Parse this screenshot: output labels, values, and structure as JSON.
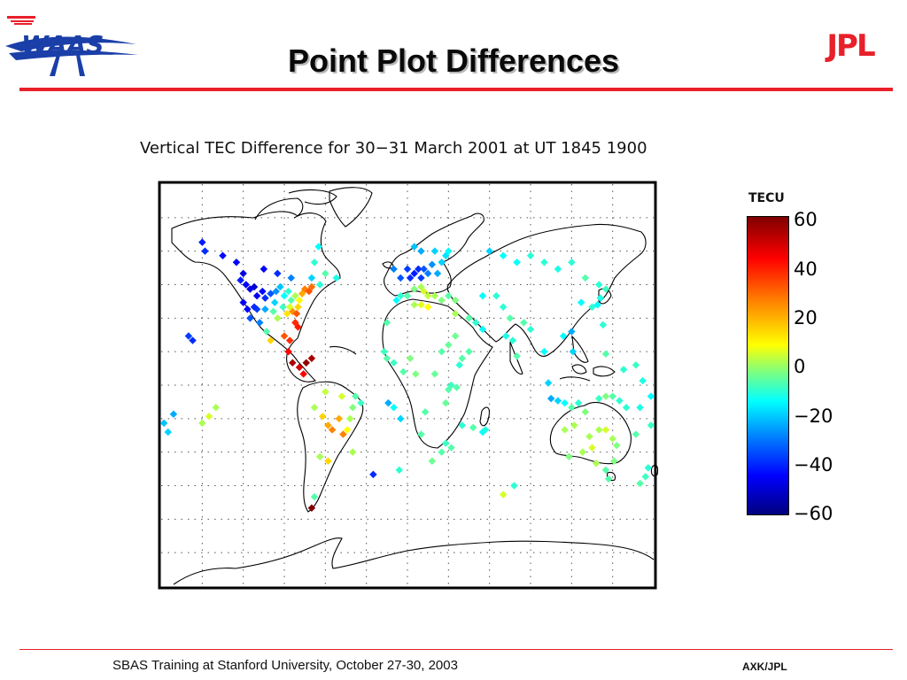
{
  "slide": {
    "title": "Point Plot Differences",
    "footer_left": "SBAS Training at Stanford University, October 27-30, 2003",
    "footer_right": "AXK/JPL",
    "logos": {
      "left": "WAAS",
      "right": "JPL"
    }
  },
  "figure": {
    "title": "Vertical TEC Difference for 30−31 March 2001 at UT  1845 1900",
    "colorbar_label": "TECU",
    "colorbar_ticks": [
      "60",
      "40",
      "20",
      "0",
      "−20",
      "−40",
      "−60"
    ]
  },
  "colors": {
    "accent_red": "#e8202a",
    "logo_blue": "#1b3fa8",
    "title_text": "#0a0a0a"
  },
  "chart_data": {
    "type": "scatter",
    "title": "Vertical TEC Difference for 30−31 March 2001 at UT  1845 1900",
    "xlabel": "",
    "ylabel": "",
    "xlim": [
      -180,
      180
    ],
    "ylim": [
      -90,
      90
    ],
    "grid": true,
    "colorbar": {
      "label": "TECU",
      "range": [
        -60,
        60
      ]
    },
    "series": [],
    "points_lon_lat_value": [
      [
        -122,
        47,
        -42
      ],
      [
        -118,
        45,
        -45
      ],
      [
        -115,
        43,
        -48
      ],
      [
        -112,
        44,
        -50
      ],
      [
        -110,
        40,
        -47
      ],
      [
        -106,
        42,
        -45
      ],
      [
        -104,
        39,
        -40
      ],
      [
        -100,
        41,
        -35
      ],
      [
        -96,
        42,
        -28
      ],
      [
        -93,
        44,
        -22
      ],
      [
        -90,
        40,
        -15
      ],
      [
        -87,
        42,
        -10
      ],
      [
        -85,
        38,
        -5
      ],
      [
        -82,
        40,
        5
      ],
      [
        -79,
        38,
        15
      ],
      [
        -77,
        41,
        25
      ],
      [
        -75,
        43,
        30
      ],
      [
        -72,
        42,
        35
      ],
      [
        -70,
        44,
        32
      ],
      [
        -80,
        35,
        20
      ],
      [
        -84,
        33,
        28
      ],
      [
        -88,
        32,
        18
      ],
      [
        -95,
        30,
        5
      ],
      [
        -98,
        33,
        -5
      ],
      [
        -104,
        34,
        -25
      ],
      [
        -110,
        34,
        -38
      ],
      [
        -117,
        34,
        -44
      ],
      [
        -120,
        37,
        -46
      ],
      [
        -112,
        35,
        -40
      ],
      [
        -97,
        37,
        -20
      ],
      [
        -91,
        35,
        -8
      ],
      [
        -86,
        35,
        10
      ],
      [
        -81,
        32,
        35
      ],
      [
        -82,
        28,
        40
      ],
      [
        -80,
        26,
        42
      ],
      [
        -90,
        22,
        35
      ],
      [
        -86,
        20,
        40
      ],
      [
        -87,
        15,
        45
      ],
      [
        -84,
        10,
        55
      ],
      [
        -79,
        8,
        50
      ],
      [
        -76,
        5,
        45
      ],
      [
        -74,
        10,
        58
      ],
      [
        -70,
        12,
        55
      ],
      [
        -100,
        20,
        20
      ],
      [
        -103,
        24,
        -5
      ],
      [
        -108,
        28,
        -30
      ],
      [
        -115,
        30,
        -35
      ],
      [
        -148,
        60,
        -40
      ],
      [
        -150,
        64,
        -42
      ],
      [
        -135,
        58,
        -44
      ],
      [
        -125,
        55,
        -46
      ],
      [
        -120,
        50,
        -48
      ],
      [
        -105,
        52,
        -45
      ],
      [
        -95,
        50,
        -40
      ],
      [
        -85,
        48,
        -30
      ],
      [
        -70,
        48,
        -20
      ],
      [
        -64,
        45,
        -10
      ],
      [
        -60,
        50,
        -5
      ],
      [
        -160,
        22,
        -38
      ],
      [
        -157,
        20,
        -40
      ],
      [
        -68,
        55,
        -10
      ],
      [
        -52,
        48,
        -12
      ],
      [
        -65,
        62,
        -15
      ],
      [
        -68,
        -10,
        5
      ],
      [
        -62,
        -14,
        20
      ],
      [
        -58,
        -18,
        25
      ],
      [
        -55,
        -20,
        30
      ],
      [
        -50,
        -15,
        25
      ],
      [
        -47,
        -22,
        30
      ],
      [
        -44,
        -20,
        15
      ],
      [
        -40,
        -10,
        0
      ],
      [
        -38,
        -5,
        -5
      ],
      [
        -48,
        -5,
        10
      ],
      [
        -60,
        -3,
        8
      ],
      [
        -64,
        -32,
        5
      ],
      [
        -68,
        -50,
        -5
      ],
      [
        -70,
        -55,
        60
      ],
      [
        -58,
        -34,
        20
      ],
      [
        -34,
        -8,
        -8
      ],
      [
        -150,
        -17,
        5
      ],
      [
        -145,
        -14,
        10
      ],
      [
        -140,
        -10,
        5
      ],
      [
        -171,
        -13,
        -25
      ],
      [
        -175,
        -21,
        -20
      ],
      [
        -178,
        -17,
        -22
      ],
      [
        -10,
        52,
        -30
      ],
      [
        -5,
        48,
        -35
      ],
      [
        0,
        52,
        -38
      ],
      [
        2,
        48,
        -40
      ],
      [
        5,
        50,
        -42
      ],
      [
        8,
        52,
        -40
      ],
      [
        10,
        48,
        -38
      ],
      [
        12,
        52,
        -35
      ],
      [
        15,
        50,
        -30
      ],
      [
        18,
        54,
        -28
      ],
      [
        22,
        50,
        -25
      ],
      [
        25,
        55,
        -20
      ],
      [
        28,
        58,
        -18
      ],
      [
        30,
        60,
        -15
      ],
      [
        20,
        60,
        -20
      ],
      [
        10,
        60,
        -25
      ],
      [
        5,
        62,
        -22
      ],
      [
        -5,
        40,
        -10
      ],
      [
        0,
        40,
        -5
      ],
      [
        5,
        43,
        0
      ],
      [
        10,
        44,
        5
      ],
      [
        12,
        42,
        10
      ],
      [
        15,
        40,
        8
      ],
      [
        20,
        40,
        5
      ],
      [
        25,
        38,
        0
      ],
      [
        30,
        40,
        -5
      ],
      [
        35,
        38,
        0
      ],
      [
        -8,
        38,
        -15
      ],
      [
        -15,
        28,
        -5
      ],
      [
        -17,
        15,
        -8
      ],
      [
        5,
        36,
        5
      ],
      [
        10,
        36,
        12
      ],
      [
        15,
        35,
        15
      ],
      [
        35,
        32,
        5
      ],
      [
        45,
        30,
        -5
      ],
      [
        50,
        28,
        -10
      ],
      [
        55,
        25,
        -15
      ],
      [
        45,
        15,
        -5
      ],
      [
        40,
        12,
        -5
      ],
      [
        38,
        9,
        -10
      ],
      [
        36,
        -1,
        -5
      ],
      [
        32,
        0,
        -8
      ],
      [
        30,
        -2,
        -5
      ],
      [
        28,
        -8,
        -3
      ],
      [
        18,
        -34,
        -2
      ],
      [
        25,
        -30,
        -5
      ],
      [
        28,
        -26,
        -8
      ],
      [
        32,
        -28,
        -5
      ],
      [
        40,
        -18,
        -10
      ],
      [
        48,
        -19,
        -5
      ],
      [
        55,
        -21,
        -15
      ],
      [
        57,
        -20,
        -12
      ],
      [
        70,
        -49,
        10
      ],
      [
        78,
        -45,
        -10
      ],
      [
        60,
        60,
        -20
      ],
      [
        70,
        58,
        -15
      ],
      [
        80,
        55,
        -15
      ],
      [
        90,
        58,
        -10
      ],
      [
        100,
        55,
        -10
      ],
      [
        110,
        52,
        -12
      ],
      [
        120,
        55,
        -10
      ],
      [
        130,
        48,
        -5
      ],
      [
        140,
        45,
        -10
      ],
      [
        145,
        43,
        -8
      ],
      [
        55,
        40,
        -15
      ],
      [
        65,
        40,
        -10
      ],
      [
        70,
        35,
        -10
      ],
      [
        75,
        30,
        -5
      ],
      [
        77,
        20,
        -10
      ],
      [
        80,
        13,
        -5
      ],
      [
        72,
        22,
        -12
      ],
      [
        85,
        28,
        -5
      ],
      [
        90,
        25,
        -10
      ],
      [
        100,
        15,
        -15
      ],
      [
        103,
        1,
        -20
      ],
      [
        105,
        -6,
        -25
      ],
      [
        110,
        -7,
        -20
      ],
      [
        115,
        -8,
        -15
      ],
      [
        120,
        -10,
        -5
      ],
      [
        125,
        -8,
        -10
      ],
      [
        130,
        -12,
        0
      ],
      [
        133,
        -23,
        5
      ],
      [
        140,
        -20,
        5
      ],
      [
        145,
        -20,
        10
      ],
      [
        150,
        -24,
        5
      ],
      [
        153,
        -27,
        0
      ],
      [
        151,
        -34,
        0
      ],
      [
        145,
        -38,
        -5
      ],
      [
        138,
        -35,
        5
      ],
      [
        118,
        -32,
        0
      ],
      [
        115,
        -20,
        5
      ],
      [
        122,
        -18,
        5
      ],
      [
        128,
        -30,
        5
      ],
      [
        135,
        -28,
        10
      ],
      [
        147,
        -42,
        -5
      ],
      [
        170,
        -44,
        -5
      ],
      [
        174,
        -41,
        -8
      ],
      [
        176,
        -37,
        -10
      ],
      [
        160,
        -10,
        -10
      ],
      [
        167,
        -22,
        -5
      ],
      [
        178,
        -18,
        -8
      ],
      [
        170,
        -10,
        -12
      ],
      [
        140,
        -6,
        -8
      ],
      [
        145,
        -5,
        0
      ],
      [
        150,
        -5,
        -5
      ],
      [
        155,
        -7,
        -10
      ],
      [
        121,
        15,
        -20
      ],
      [
        120,
        24,
        -25
      ],
      [
        114,
        22,
        -15
      ],
      [
        127,
        37,
        -15
      ],
      [
        135,
        35,
        -10
      ],
      [
        139,
        36,
        -15
      ],
      [
        141,
        39,
        -12
      ],
      [
        143,
        27,
        -10
      ],
      [
        145,
        14,
        -5
      ],
      [
        158,
        7,
        -10
      ],
      [
        167,
        9,
        -8
      ],
      [
        172,
        2,
        -12
      ],
      [
        178,
        -5,
        -15
      ],
      [
        -10,
        -10,
        -15
      ],
      [
        -5,
        -15,
        -20
      ],
      [
        -14,
        -8,
        -25
      ],
      [
        -25,
        -40,
        -40
      ],
      [
        -42,
        -15,
        5
      ],
      [
        -40,
        -30,
        5
      ],
      [
        -6,
        -38,
        -10
      ],
      [
        10,
        -22,
        -5
      ],
      [
        13,
        -12,
        -5
      ],
      [
        6,
        5,
        0
      ],
      [
        -3,
        6,
        -5
      ],
      [
        -10,
        10,
        -8
      ],
      [
        -15,
        12,
        -5
      ],
      [
        2,
        12,
        0
      ],
      [
        20,
        5,
        -3
      ],
      [
        25,
        15,
        -5
      ],
      [
        30,
        18,
        -3
      ],
      [
        35,
        22,
        -2
      ]
    ]
  }
}
